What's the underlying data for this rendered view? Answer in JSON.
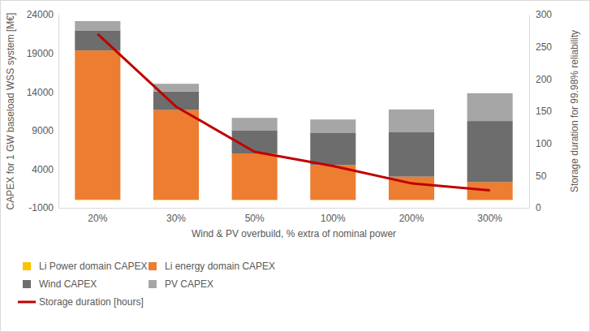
{
  "chart_data": {
    "type": "bar",
    "stacked": true,
    "grid": false,
    "legend": "bottom",
    "x_label": "Wind & PV overbuild, % extra of nominal power",
    "y_label": "CAPEX for 1 GW baseload WSS system [M€]",
    "y2_label": "Storage duration for 99.98% reliability",
    "categories": [
      "20%",
      "30%",
      "50%",
      "100%",
      "200%",
      "300%"
    ],
    "ylim": [
      -1000,
      24000
    ],
    "yticks": [
      -1000,
      4000,
      9000,
      14000,
      19000,
      24000
    ],
    "y2lim": [
      0,
      300
    ],
    "y2ticks": [
      0,
      50,
      100,
      150,
      200,
      250,
      300
    ],
    "series": [
      {
        "name": "Li Power domain CAPEX",
        "type": "bar",
        "color": "#ffc000",
        "values": [
          60,
          50,
          40,
          30,
          30,
          30
        ]
      },
      {
        "name": "Li energy domain CAPEX",
        "type": "bar",
        "color": "#ed7d31",
        "values": [
          19300,
          11600,
          6000,
          4500,
          3000,
          2300
        ]
      },
      {
        "name": "Wind CAPEX",
        "type": "bar",
        "color": "#6d6d6d",
        "values": [
          2600,
          2400,
          3000,
          4200,
          5800,
          7900
        ]
      },
      {
        "name": "PV CAPEX",
        "type": "bar",
        "color": "#a6a6a6",
        "values": [
          1200,
          1000,
          1600,
          1700,
          2900,
          3600
        ]
      },
      {
        "name": "Storage duration [hours]",
        "type": "line",
        "axis": "y2",
        "color": "#c00000",
        "values": [
          270,
          157,
          87,
          65,
          38,
          27
        ]
      }
    ]
  }
}
